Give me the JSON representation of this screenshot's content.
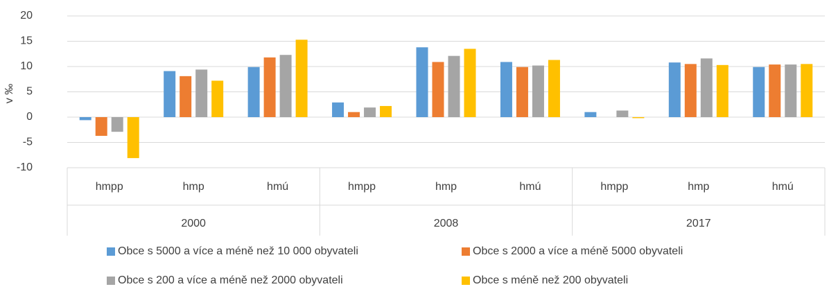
{
  "chart_data": {
    "type": "bar",
    "y_label": "v ‰",
    "categories": [
      "hmpp",
      "hmp",
      "hmú",
      "hmpp",
      "hmp",
      "hmú",
      "hmpp",
      "hmp",
      "hmú"
    ],
    "groups": [
      "2000",
      "2008",
      "2017"
    ],
    "series": [
      {
        "name": "Obce s 5000 a více a méně než 10 000 obyvateli",
        "color": "#5b9bd5",
        "values": [
          -0.6,
          9.1,
          9.9,
          2.9,
          13.8,
          10.9,
          1.0,
          10.8,
          9.9
        ]
      },
      {
        "name": "Obce s 2000 a více a méně 5000 obyvateli",
        "color": "#ed7d31",
        "values": [
          -3.7,
          8.1,
          11.8,
          1.0,
          10.9,
          9.9,
          0,
          10.5,
          10.4
        ]
      },
      {
        "name": "Obce s 200 a více a méně než 2000 obyvateli",
        "color": "#a5a5a5",
        "values": [
          -2.9,
          9.4,
          12.3,
          1.9,
          12.1,
          10.2,
          1.3,
          11.6,
          10.4
        ]
      },
      {
        "name": "Obce s méně než 200 obyvateli",
        "color": "#ffc000",
        "values": [
          -8.1,
          7.2,
          15.3,
          2.2,
          13.5,
          11.3,
          -0.2,
          10.3,
          10.5
        ]
      }
    ],
    "ylim": [
      -10,
      20
    ],
    "yticks": [
      -10,
      -5,
      0,
      5,
      10,
      15,
      20
    ],
    "grid": true
  }
}
